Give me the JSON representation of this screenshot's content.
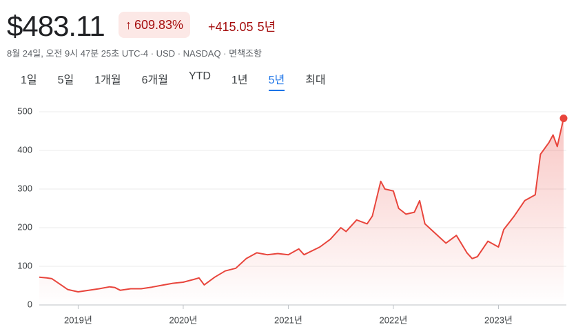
{
  "header": {
    "price": "$483.11",
    "change_pct": "609.83%",
    "change_abs": "+415.05",
    "period": "5년",
    "subtitle": "8월 24일, 오전 9시 47분 25초 UTC-4 · USD · NASDAQ · 면책조항"
  },
  "tabs": {
    "items": [
      "1일",
      "5일",
      "1개월",
      "6개월",
      "YTD",
      "1년",
      "5년",
      "최대"
    ],
    "active": 6
  },
  "chart_data": {
    "type": "line",
    "color": "#e8453c",
    "grid": true,
    "x": [
      2018.63,
      2018.7,
      2018.75,
      2018.82,
      2018.9,
      2019.0,
      2019.1,
      2019.2,
      2019.3,
      2019.35,
      2019.4,
      2019.5,
      2019.6,
      2019.7,
      2019.8,
      2019.9,
      2020.0,
      2020.1,
      2020.15,
      2020.2,
      2020.3,
      2020.4,
      2020.5,
      2020.6,
      2020.7,
      2020.8,
      2020.9,
      2021.0,
      2021.1,
      2021.15,
      2021.3,
      2021.4,
      2021.5,
      2021.55,
      2021.65,
      2021.75,
      2021.8,
      2021.88,
      2021.92,
      2022.0,
      2022.05,
      2022.12,
      2022.2,
      2022.25,
      2022.3,
      2022.4,
      2022.5,
      2022.6,
      2022.7,
      2022.75,
      2022.8,
      2022.9,
      2023.0,
      2023.05,
      2023.15,
      2023.25,
      2023.35,
      2023.4,
      2023.48,
      2023.52,
      2023.56,
      2023.62
    ],
    "values": [
      72,
      70,
      68,
      55,
      40,
      34,
      38,
      42,
      47,
      45,
      38,
      42,
      42,
      46,
      51,
      56,
      59,
      66,
      70,
      52,
      72,
      88,
      95,
      120,
      135,
      130,
      133,
      130,
      145,
      130,
      150,
      170,
      200,
      190,
      220,
      210,
      230,
      320,
      300,
      295,
      250,
      235,
      240,
      270,
      210,
      185,
      160,
      180,
      135,
      120,
      125,
      165,
      150,
      195,
      230,
      270,
      285,
      390,
      420,
      440,
      410,
      483.11
    ],
    "xlim": [
      2018.63,
      2023.62
    ],
    "xticks": [
      {
        "value": 2019,
        "label": "2019년"
      },
      {
        "value": 2020,
        "label": "2020년"
      },
      {
        "value": 2021,
        "label": "2021년"
      },
      {
        "value": 2022,
        "label": "2022년"
      },
      {
        "value": 2023,
        "label": "2023년"
      }
    ],
    "ylim": [
      0,
      500
    ],
    "yticks": [
      0,
      100,
      200,
      300,
      400,
      500
    ]
  }
}
